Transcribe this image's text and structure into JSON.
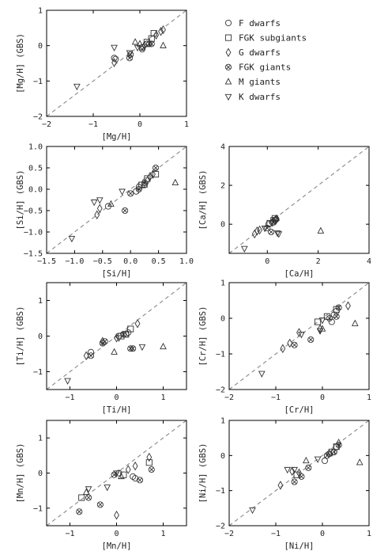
{
  "legend": {
    "placement": "top-right",
    "entries": [
      {
        "label": "F dwarfs",
        "marker": "circle"
      },
      {
        "label": "FGK subgiants",
        "marker": "square"
      },
      {
        "label": "G dwarfs",
        "marker": "diamond"
      },
      {
        "label": "FGK giants",
        "marker": "x-circle"
      },
      {
        "label": "M giants",
        "marker": "triangle-up"
      },
      {
        "label": "K dwarfs",
        "marker": "triangle-down"
      }
    ]
  },
  "colors": {
    "marker": "#333333",
    "axis": "#000000",
    "reference": "#888888"
  },
  "chart_data": [
    {
      "type": "scatter",
      "xlabel": "[Mg/H]",
      "ylabel": "[Mg/H] (GBS)",
      "xlim": [
        -2,
        1
      ],
      "ylim": [
        -2,
        1
      ],
      "xticks": [
        -2,
        -1,
        0,
        1
      ],
      "yticks": [
        -2,
        -1,
        0,
        1
      ],
      "grid": false,
      "reference_line": "y = x",
      "series": [
        {
          "marker": "circle",
          "points": [
            [
              -0.55,
              -0.35
            ],
            [
              -0.52,
              -0.38
            ],
            [
              0.05,
              -0.05
            ],
            [
              0.15,
              0.05
            ]
          ]
        },
        {
          "marker": "square",
          "points": [
            [
              0.3,
              0.35
            ],
            [
              0.25,
              0.2
            ],
            [
              0.15,
              0.1
            ]
          ]
        },
        {
          "marker": "diamond",
          "points": [
            [
              -0.55,
              -0.48
            ],
            [
              0.45,
              0.4
            ],
            [
              0.5,
              0.45
            ],
            [
              0.35,
              0.3
            ],
            [
              0.1,
              0.0
            ]
          ]
        },
        {
          "marker": "x-circle",
          "points": [
            [
              -0.22,
              -0.35
            ],
            [
              -0.2,
              -0.25
            ],
            [
              0.05,
              -0.1
            ],
            [
              0.2,
              0.05
            ],
            [
              0.25,
              0.05
            ]
          ]
        },
        {
          "marker": "triangle-up",
          "points": [
            [
              -0.1,
              0.1
            ],
            [
              0.5,
              0.0
            ],
            [
              0.0,
              0.05
            ]
          ]
        },
        {
          "marker": "triangle-down",
          "points": [
            [
              -1.35,
              -1.15
            ],
            [
              -0.55,
              -0.05
            ],
            [
              -0.22,
              -0.2
            ],
            [
              -0.05,
              -0.05
            ]
          ]
        }
      ]
    },
    {
      "type": "scatter",
      "xlabel": "[Si/H]",
      "ylabel": "[Si/H] (GBS)",
      "xlim": [
        -1.5,
        1.0
      ],
      "ylim": [
        -1.5,
        1.0
      ],
      "xticks": [
        -1.5,
        -1.0,
        -0.5,
        0.0,
        0.5,
        1.0
      ],
      "yticks": [
        -1.5,
        -1.0,
        -0.5,
        0.0,
        0.5,
        1.0
      ],
      "grid": false,
      "reference_line": "y = x",
      "series": [
        {
          "marker": "circle",
          "points": [
            [
              -0.4,
              -0.4
            ],
            [
              0.1,
              -0.05
            ],
            [
              0.15,
              0.05
            ],
            [
              0.25,
              0.1
            ]
          ]
        },
        {
          "marker": "square",
          "points": [
            [
              0.45,
              0.35
            ],
            [
              0.3,
              0.25
            ],
            [
              0.2,
              0.1
            ]
          ]
        },
        {
          "marker": "diamond",
          "points": [
            [
              -0.6,
              -0.6
            ],
            [
              -0.55,
              -0.45
            ],
            [
              0.35,
              0.3
            ],
            [
              0.4,
              0.35
            ],
            [
              0.3,
              0.2
            ]
          ]
        },
        {
          "marker": "x-circle",
          "points": [
            [
              -0.1,
              -0.5
            ],
            [
              0.45,
              0.5
            ],
            [
              0.0,
              -0.1
            ],
            [
              0.15,
              0.0
            ],
            [
              0.25,
              0.15
            ]
          ]
        },
        {
          "marker": "triangle-up",
          "points": [
            [
              0.8,
              0.15
            ],
            [
              0.25,
              0.1
            ],
            [
              -0.35,
              -0.35
            ]
          ]
        },
        {
          "marker": "triangle-down",
          "points": [
            [
              -1.05,
              -1.15
            ],
            [
              -0.65,
              -0.3
            ],
            [
              -0.55,
              -0.25
            ],
            [
              -0.15,
              -0.05
            ]
          ]
        }
      ]
    },
    {
      "type": "scatter",
      "xlabel": "[Ca/H]",
      "ylabel": "[Ca/H] (GBS)",
      "xlim": [
        -1.5,
        4
      ],
      "ylim": [
        -1.5,
        4
      ],
      "xticks": [
        0,
        2,
        4
      ],
      "yticks": [
        0,
        2,
        4
      ],
      "grid": false,
      "reference_line": "y = x",
      "series": [
        {
          "marker": "circle",
          "points": [
            [
              0.05,
              0.0
            ],
            [
              0.2,
              0.1
            ],
            [
              0.35,
              0.25
            ]
          ]
        },
        {
          "marker": "square",
          "points": [
            [
              0.3,
              0.3
            ],
            [
              0.25,
              0.2
            ],
            [
              0.1,
              0.05
            ]
          ]
        },
        {
          "marker": "diamond",
          "points": [
            [
              -0.5,
              -0.5
            ],
            [
              -0.4,
              -0.35
            ],
            [
              0.35,
              0.25
            ],
            [
              -0.3,
              -0.3
            ]
          ]
        },
        {
          "marker": "x-circle",
          "points": [
            [
              0.15,
              -0.4
            ],
            [
              0.0,
              -0.2
            ],
            [
              0.25,
              0.1
            ],
            [
              0.3,
              0.2
            ]
          ]
        },
        {
          "marker": "triangle-up",
          "points": [
            [
              2.1,
              -0.35
            ],
            [
              0.35,
              0.3
            ]
          ]
        },
        {
          "marker": "triangle-down",
          "points": [
            [
              -0.9,
              -1.25
            ],
            [
              0.4,
              -0.45
            ],
            [
              0.45,
              -0.5
            ],
            [
              -0.1,
              -0.2
            ]
          ]
        }
      ]
    },
    {
      "type": "scatter",
      "xlabel": "[Ti/H]",
      "ylabel": "[Ti/H] (GBS)",
      "xlim": [
        -1.5,
        1.5
      ],
      "ylim": [
        -1.5,
        1.5
      ],
      "xticks": [
        -1,
        0,
        1
      ],
      "yticks": [
        -1,
        0,
        1
      ],
      "grid": false,
      "reference_line": "y = x",
      "series": [
        {
          "marker": "circle",
          "points": [
            [
              -0.55,
              -0.45
            ],
            [
              0.2,
              0.05
            ],
            [
              0.25,
              0.1
            ],
            [
              0.05,
              0.0
            ]
          ]
        },
        {
          "marker": "square",
          "points": [
            [
              0.3,
              0.2
            ],
            [
              0.2,
              0.05
            ],
            [
              0.1,
              0.0
            ]
          ]
        },
        {
          "marker": "diamond",
          "points": [
            [
              -0.65,
              -0.55
            ],
            [
              0.45,
              0.35
            ],
            [
              -0.3,
              -0.15
            ],
            [
              0.0,
              -0.05
            ]
          ]
        },
        {
          "marker": "x-circle",
          "points": [
            [
              -0.55,
              -0.55
            ],
            [
              -0.3,
              -0.2
            ],
            [
              -0.25,
              -0.15
            ],
            [
              0.35,
              -0.35
            ],
            [
              0.3,
              -0.35
            ],
            [
              0.15,
              0.05
            ]
          ]
        },
        {
          "marker": "triangle-up",
          "points": [
            [
              1.0,
              -0.3
            ],
            [
              -0.05,
              -0.45
            ]
          ]
        },
        {
          "marker": "triangle-down",
          "points": [
            [
              -1.05,
              -1.25
            ],
            [
              0.55,
              -0.3
            ],
            [
              0.05,
              -0.05
            ]
          ]
        }
      ]
    },
    {
      "type": "scatter",
      "xlabel": "[Cr/H]",
      "ylabel": "[Cr/H] (GBS)",
      "xlim": [
        -2,
        1
      ],
      "ylim": [
        -2,
        1
      ],
      "xticks": [
        -2,
        -1,
        0,
        1
      ],
      "yticks": [
        -2,
        -1,
        0,
        1
      ],
      "grid": false,
      "reference_line": "y = x",
      "series": [
        {
          "marker": "circle",
          "points": [
            [
              0.2,
              -0.1
            ],
            [
              0.25,
              0.1
            ],
            [
              0.3,
              0.2
            ]
          ]
        },
        {
          "marker": "square",
          "points": [
            [
              -0.1,
              -0.1
            ],
            [
              0.3,
              0.25
            ],
            [
              0.1,
              0.05
            ]
          ]
        },
        {
          "marker": "diamond",
          "points": [
            [
              -0.85,
              -0.85
            ],
            [
              -0.7,
              -0.7
            ],
            [
              -0.5,
              -0.4
            ],
            [
              0.55,
              0.35
            ],
            [
              -0.05,
              -0.3
            ]
          ]
        },
        {
          "marker": "x-circle",
          "points": [
            [
              -0.6,
              -0.75
            ],
            [
              -0.25,
              -0.6
            ],
            [
              0.15,
              0.0
            ],
            [
              0.3,
              0.05
            ],
            [
              0.35,
              0.3
            ]
          ]
        },
        {
          "marker": "triangle-up",
          "points": [
            [
              0.7,
              -0.15
            ],
            [
              0.0,
              -0.3
            ]
          ]
        },
        {
          "marker": "triangle-down",
          "points": [
            [
              -1.3,
              -1.55
            ],
            [
              -0.45,
              -0.45
            ],
            [
              -0.05,
              -0.35
            ],
            [
              0.0,
              -0.05
            ]
          ]
        }
      ]
    },
    {
      "type": "scatter",
      "xlabel": "[Mn/H]",
      "ylabel": "[Mn/H] (GBS)",
      "xlim": [
        -1.5,
        1.5
      ],
      "ylim": [
        -1.5,
        1.5
      ],
      "xticks": [
        -1,
        0,
        1
      ],
      "yticks": [
        -1,
        0,
        1
      ],
      "grid": false,
      "reference_line": "y = x",
      "series": [
        {
          "marker": "circle",
          "points": [
            [
              0.35,
              -0.1
            ],
            [
              0.4,
              -0.15
            ],
            [
              0.05,
              0.0
            ]
          ]
        },
        {
          "marker": "square",
          "points": [
            [
              -0.75,
              -0.7
            ],
            [
              0.7,
              0.3
            ],
            [
              0.15,
              -0.05
            ]
          ]
        },
        {
          "marker": "diamond",
          "points": [
            [
              0.0,
              -1.2
            ],
            [
              0.7,
              0.45
            ],
            [
              0.25,
              0.1
            ],
            [
              0.4,
              0.2
            ]
          ]
        },
        {
          "marker": "x-circle",
          "points": [
            [
              -0.8,
              -1.1
            ],
            [
              -0.35,
              -0.9
            ],
            [
              -0.05,
              -0.05
            ],
            [
              0.5,
              -0.2
            ],
            [
              -0.6,
              -0.7
            ],
            [
              0.75,
              0.1
            ]
          ]
        },
        {
          "marker": "triangle-up",
          "points": [
            [
              -0.65,
              -0.55
            ],
            [
              0.1,
              -0.1
            ]
          ]
        },
        {
          "marker": "triangle-down",
          "points": [
            [
              -0.6,
              -0.45
            ],
            [
              -0.2,
              -0.4
            ],
            [
              0.0,
              0.0
            ]
          ]
        }
      ]
    },
    {
      "type": "scatter",
      "xlabel": "[Ni/H]",
      "ylabel": "[Ni/H] (GBS)",
      "xlim": [
        -2,
        1
      ],
      "ylim": [
        -2,
        1
      ],
      "xticks": [
        -2,
        -1,
        0,
        1
      ],
      "yticks": [
        -2,
        -1,
        0,
        1
      ],
      "grid": false,
      "reference_line": "y = x",
      "series": [
        {
          "marker": "circle",
          "points": [
            [
              0.05,
              -0.15
            ],
            [
              0.25,
              0.1
            ],
            [
              0.3,
              0.25
            ],
            [
              0.15,
              0.05
            ]
          ]
        },
        {
          "marker": "square",
          "points": [
            [
              -0.55,
              -0.55
            ],
            [
              0.3,
              0.25
            ],
            [
              0.2,
              0.1
            ]
          ]
        },
        {
          "marker": "diamond",
          "points": [
            [
              -0.9,
              -0.85
            ],
            [
              -0.65,
              -0.45
            ],
            [
              0.35,
              0.35
            ],
            [
              -0.5,
              -0.5
            ]
          ]
        },
        {
          "marker": "x-circle",
          "points": [
            [
              -0.6,
              -0.75
            ],
            [
              -0.45,
              -0.6
            ],
            [
              -0.3,
              -0.35
            ],
            [
              0.1,
              0.0
            ],
            [
              0.25,
              0.1
            ],
            [
              0.35,
              0.3
            ]
          ]
        },
        {
          "marker": "triangle-up",
          "points": [
            [
              0.8,
              -0.2
            ],
            [
              -0.35,
              -0.15
            ],
            [
              0.15,
              0.05
            ]
          ]
        },
        {
          "marker": "triangle-down",
          "points": [
            [
              -1.5,
              -1.55
            ],
            [
              -0.75,
              -0.4
            ],
            [
              -0.6,
              -0.4
            ],
            [
              -0.1,
              -0.1
            ]
          ]
        }
      ]
    }
  ]
}
